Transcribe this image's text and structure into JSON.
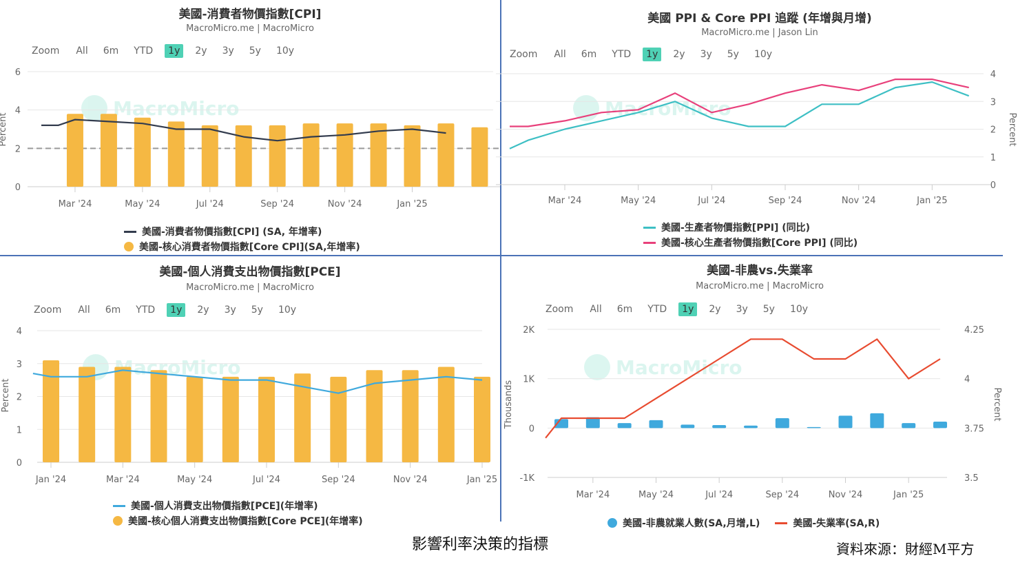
{
  "chart_data": [
    {
      "type": "bar",
      "title": "美國-消費者物價指數[CPI]",
      "subtitle": "MacroMicro.me | MacroMicro",
      "ylabel": "Percent",
      "ylim": [
        0,
        6
      ],
      "yticks": [
        0,
        2,
        4,
        6
      ],
      "xticks": [
        "Mar '24",
        "May '24",
        "Jul '24",
        "Sep '24",
        "Nov '24",
        "Jan '25"
      ],
      "reference_line": 2,
      "series": [
        {
          "name": "美國-消費者物價指數[CPI] (SA, 年增率)",
          "type": "line",
          "color": "#333c4e",
          "x": [
            0,
            0.5,
            1,
            2,
            3,
            4,
            5,
            6,
            7,
            8,
            9,
            10,
            11,
            12
          ],
          "values": [
            3.2,
            3.2,
            3.5,
            3.4,
            3.3,
            3.0,
            3.0,
            2.6,
            2.4,
            2.6,
            2.7,
            2.9,
            3.0,
            2.8
          ]
        },
        {
          "name": "美國-核心消費者物價指數[Core CPI](SA,年增率)",
          "type": "bar",
          "color": "#f5b843",
          "x": [
            1,
            2,
            3,
            4,
            5,
            6,
            7,
            8,
            9,
            10,
            11,
            12,
            13
          ],
          "values": [
            3.8,
            3.8,
            3.6,
            3.4,
            3.2,
            3.2,
            3.2,
            3.3,
            3.3,
            3.3,
            3.2,
            3.3,
            3.1
          ]
        }
      ]
    },
    {
      "type": "line",
      "title": "美國 PPI & Core PPI 追蹤 (年增與月增)",
      "subtitle": "MacroMicro.me | Jason Lin",
      "ylabel": "Percent",
      "ylim": [
        0,
        4
      ],
      "yticks": [
        0,
        1,
        2,
        3,
        4
      ],
      "xticks": [
        "Mar '24",
        "May '24",
        "Jul '24",
        "Sep '24",
        "Nov '24",
        "Jan '25"
      ],
      "series": [
        {
          "name": "美國-生產者物價指數[PPI] (同比)",
          "color": "#3dbfc4",
          "x": [
            0,
            0.5,
            1.5,
            2.5,
            3.5,
            4.5,
            5.5,
            6.5,
            7.5,
            8.5,
            9.5,
            10.5,
            11.5,
            12.5
          ],
          "values": [
            1.3,
            1.6,
            2.0,
            2.3,
            2.6,
            3.0,
            2.4,
            2.1,
            2.1,
            2.9,
            2.9,
            3.5,
            3.7,
            3.2
          ]
        },
        {
          "name": "美國-核心生產者物價指數[Core PPI] (同比)",
          "color": "#e8407b",
          "x": [
            0,
            0.5,
            1.5,
            2.5,
            3.5,
            4.5,
            5.5,
            6.5,
            7.5,
            8.5,
            9.5,
            10.5,
            11.5,
            12.5
          ],
          "values": [
            2.1,
            2.1,
            2.3,
            2.6,
            2.7,
            3.3,
            2.6,
            2.9,
            3.3,
            3.6,
            3.4,
            3.8,
            3.8,
            3.5
          ]
        }
      ]
    },
    {
      "type": "bar",
      "title": "美國-個人消費支出物價指數[PCE]",
      "subtitle": "MacroMicro.me | MacroMicro",
      "ylabel": "Percent",
      "ylim": [
        0,
        4
      ],
      "yticks": [
        0,
        1,
        2,
        3,
        4
      ],
      "xticks": [
        "Jan '24",
        "Mar '24",
        "May '24",
        "Jul '24",
        "Sep '24",
        "Nov '24",
        "Jan '25"
      ],
      "series": [
        {
          "name": "美國-個人消費支出物價指數[PCE](年增率)",
          "type": "line",
          "color": "#3fa9dd",
          "x": [
            -0.5,
            0,
            1,
            2,
            3,
            4,
            5,
            6,
            7,
            8,
            9,
            10,
            11,
            12
          ],
          "values": [
            2.7,
            2.6,
            2.6,
            2.8,
            2.7,
            2.6,
            2.5,
            2.5,
            2.3,
            2.1,
            2.4,
            2.5,
            2.6,
            2.5
          ]
        },
        {
          "name": "美國-核心個人消費支出物價指數[Core PCE](年增率)",
          "type": "bar",
          "color": "#f5b843",
          "x": [
            0,
            1,
            2,
            3,
            4,
            5,
            6,
            7,
            8,
            9,
            10,
            11,
            12
          ],
          "values": [
            3.1,
            2.9,
            2.9,
            2.8,
            2.6,
            2.6,
            2.6,
            2.7,
            2.6,
            2.8,
            2.8,
            2.9,
            2.6
          ]
        }
      ]
    },
    {
      "type": "bar",
      "title": "美國-非農vs.失業率",
      "subtitle": "MacroMicro.me | MacroMicro",
      "ylabel": "Thousands",
      "y2label": "Percent",
      "ylim": [
        -1000,
        2000
      ],
      "y2lim": [
        3.5,
        4.25
      ],
      "yticks": [
        "-1K",
        "0",
        "1K",
        "2K"
      ],
      "y2ticks": [
        "3.5",
        "3.75",
        "4",
        "4.25"
      ],
      "xticks": [
        "Mar '24",
        "May '24",
        "Jul '24",
        "Sep '24",
        "Nov '24",
        "Jan '25"
      ],
      "series": [
        {
          "name": "美國-非農就業人數(SA,月增,L)",
          "type": "bar",
          "color": "#3fa9dd",
          "x": [
            0,
            1,
            2,
            3,
            4,
            5,
            6,
            7,
            8,
            9,
            10,
            11,
            12
          ],
          "values": [
            180,
            220,
            100,
            160,
            70,
            60,
            50,
            200,
            20,
            250,
            300,
            100,
            130
          ]
        },
        {
          "name": "美國-失業率(SA,R)",
          "type": "line",
          "color": "#e84b30",
          "x": [
            -0.5,
            0,
            1,
            2,
            3,
            4,
            5,
            6,
            7,
            8,
            9,
            10,
            11,
            12
          ],
          "values": [
            3.7,
            3.8,
            3.8,
            3.8,
            3.9,
            4.0,
            4.1,
            4.2,
            4.2,
            4.1,
            4.1,
            4.2,
            4.0,
            4.1
          ]
        }
      ]
    }
  ],
  "zoom": {
    "label": "Zoom",
    "options": [
      "All",
      "6m",
      "YTD",
      "1y",
      "2y",
      "3y",
      "5y",
      "10y"
    ],
    "selected": "1y"
  },
  "watermark": "MacroMicro",
  "caption": "影響利率決策的指標",
  "source": "資料來源：財經M平方",
  "colors": {
    "accent": "#4fd1b5",
    "divider": "#4a72b6",
    "refline": "#999999"
  }
}
